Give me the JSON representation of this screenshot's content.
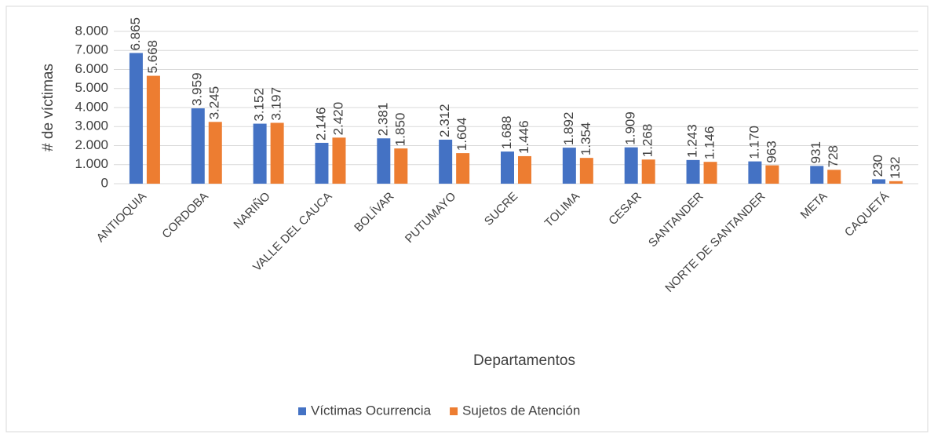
{
  "chart_data": {
    "type": "bar",
    "xlabel": "Departamentos",
    "ylabel": "# de víctimas",
    "categories": [
      "ANTIOQUIA",
      "CORDOBA",
      "NARIÑO",
      "VALLE DEL CAUCA",
      "BOLÍVAR",
      "PUTUMAYO",
      "SUCRE",
      "TOLIMA",
      "CESAR",
      "SANTANDER",
      "NORTE DE SANTANDER",
      "META",
      "CAQUETÁ"
    ],
    "series": [
      {
        "name": "Víctimas Ocurrencia",
        "color": "#4472c4",
        "values": [
          6865,
          3959,
          3152,
          2146,
          2381,
          2312,
          1688,
          1892,
          1909,
          1243,
          1170,
          931,
          230
        ],
        "value_labels": [
          "6.865",
          "3.959",
          "3.152",
          "2.146",
          "2.381",
          "2.312",
          "1.688",
          "1.892",
          "1.909",
          "1.243",
          "1.170",
          "931",
          "230"
        ]
      },
      {
        "name": "Sujetos de Atención",
        "color": "#ed7d31",
        "values": [
          5668,
          3245,
          3197,
          2420,
          1850,
          1604,
          1446,
          1354,
          1268,
          1146,
          963,
          728,
          132
        ],
        "value_labels": [
          "5.668",
          "3.245",
          "3.197",
          "2.420",
          "1.850",
          "1.604",
          "1.446",
          "1.354",
          "1.268",
          "1.146",
          "963",
          "728",
          "132"
        ]
      }
    ],
    "ylim": [
      0,
      8000
    ],
    "yticks": [
      0,
      {
        "value": 1000,
        "label": "1.000"
      },
      {
        "value": 2000,
        "label": "2.000"
      },
      {
        "value": 3000,
        "label": "3.000"
      },
      {
        "value": 4000,
        "label": "4.000"
      },
      {
        "value": 5000,
        "label": "5.000"
      },
      {
        "value": 6000,
        "label": "6.000"
      },
      {
        "value": 7000,
        "label": "7.000"
      },
      {
        "value": 8000,
        "label": "8.000"
      }
    ],
    "grid": true,
    "legend": "bottom"
  }
}
